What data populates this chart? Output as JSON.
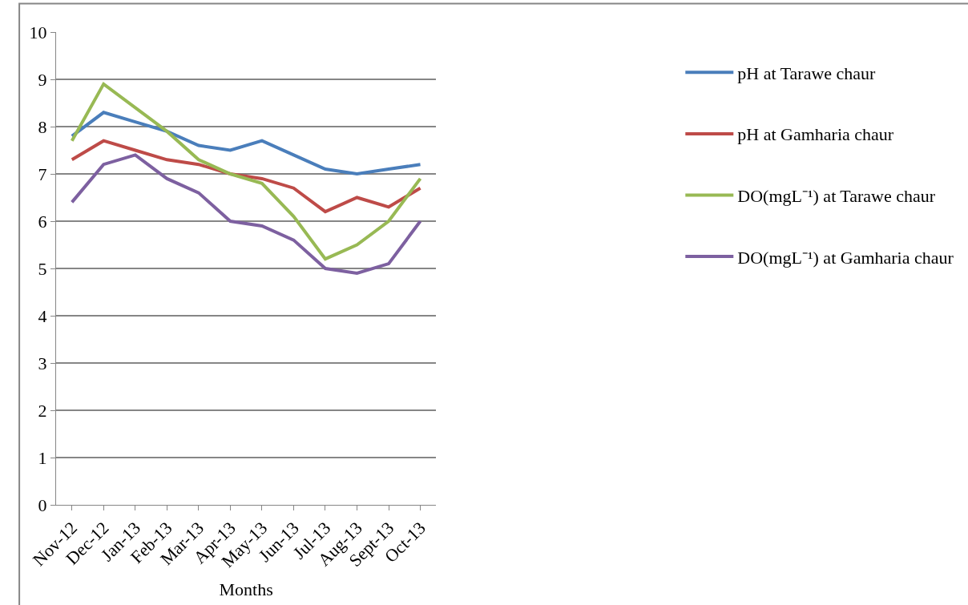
{
  "chart_data": {
    "type": "line",
    "xlabel": "Months",
    "categories": [
      "Nov-12",
      "Dec-12",
      "Jan-13",
      "Feb-13",
      "Mar-13",
      "Apr-13",
      "May-13",
      "Jun-13",
      "Jul-13",
      "Aug-13",
      "Sept-13",
      "Oct-13"
    ],
    "series": [
      {
        "name": "pH at Tarawe chaur",
        "color": "#4a7ebb",
        "values": [
          7.8,
          8.3,
          8.1,
          7.9,
          7.6,
          7.5,
          7.7,
          7.4,
          7.1,
          7.0,
          7.1,
          7.2
        ]
      },
      {
        "name": "pH at Gamharia chaur",
        "color": "#be4b48",
        "values": [
          7.3,
          7.7,
          7.5,
          7.3,
          7.2,
          7.0,
          6.9,
          6.7,
          6.2,
          6.5,
          6.3,
          6.7
        ]
      },
      {
        "name": "DO(mgL⁻¹) at Tarawe chaur",
        "color": "#98b954",
        "values": [
          7.7,
          8.9,
          8.4,
          7.9,
          7.3,
          7.0,
          6.8,
          6.1,
          5.2,
          5.5,
          6.0,
          6.9
        ]
      },
      {
        "name": "DO(mgL⁻¹) at Gamharia chaur",
        "color": "#7d60a0",
        "values": [
          6.4,
          7.2,
          7.4,
          6.9,
          6.6,
          6.0,
          5.9,
          5.6,
          5.0,
          4.9,
          5.1,
          6.0
        ]
      }
    ],
    "ylim": [
      0,
      10
    ],
    "yticks": [
      0,
      1,
      2,
      3,
      4,
      5,
      6,
      7,
      8,
      9,
      10
    ],
    "grid": "y",
    "legend": "right",
    "marker": "none",
    "line_style": "solid"
  }
}
